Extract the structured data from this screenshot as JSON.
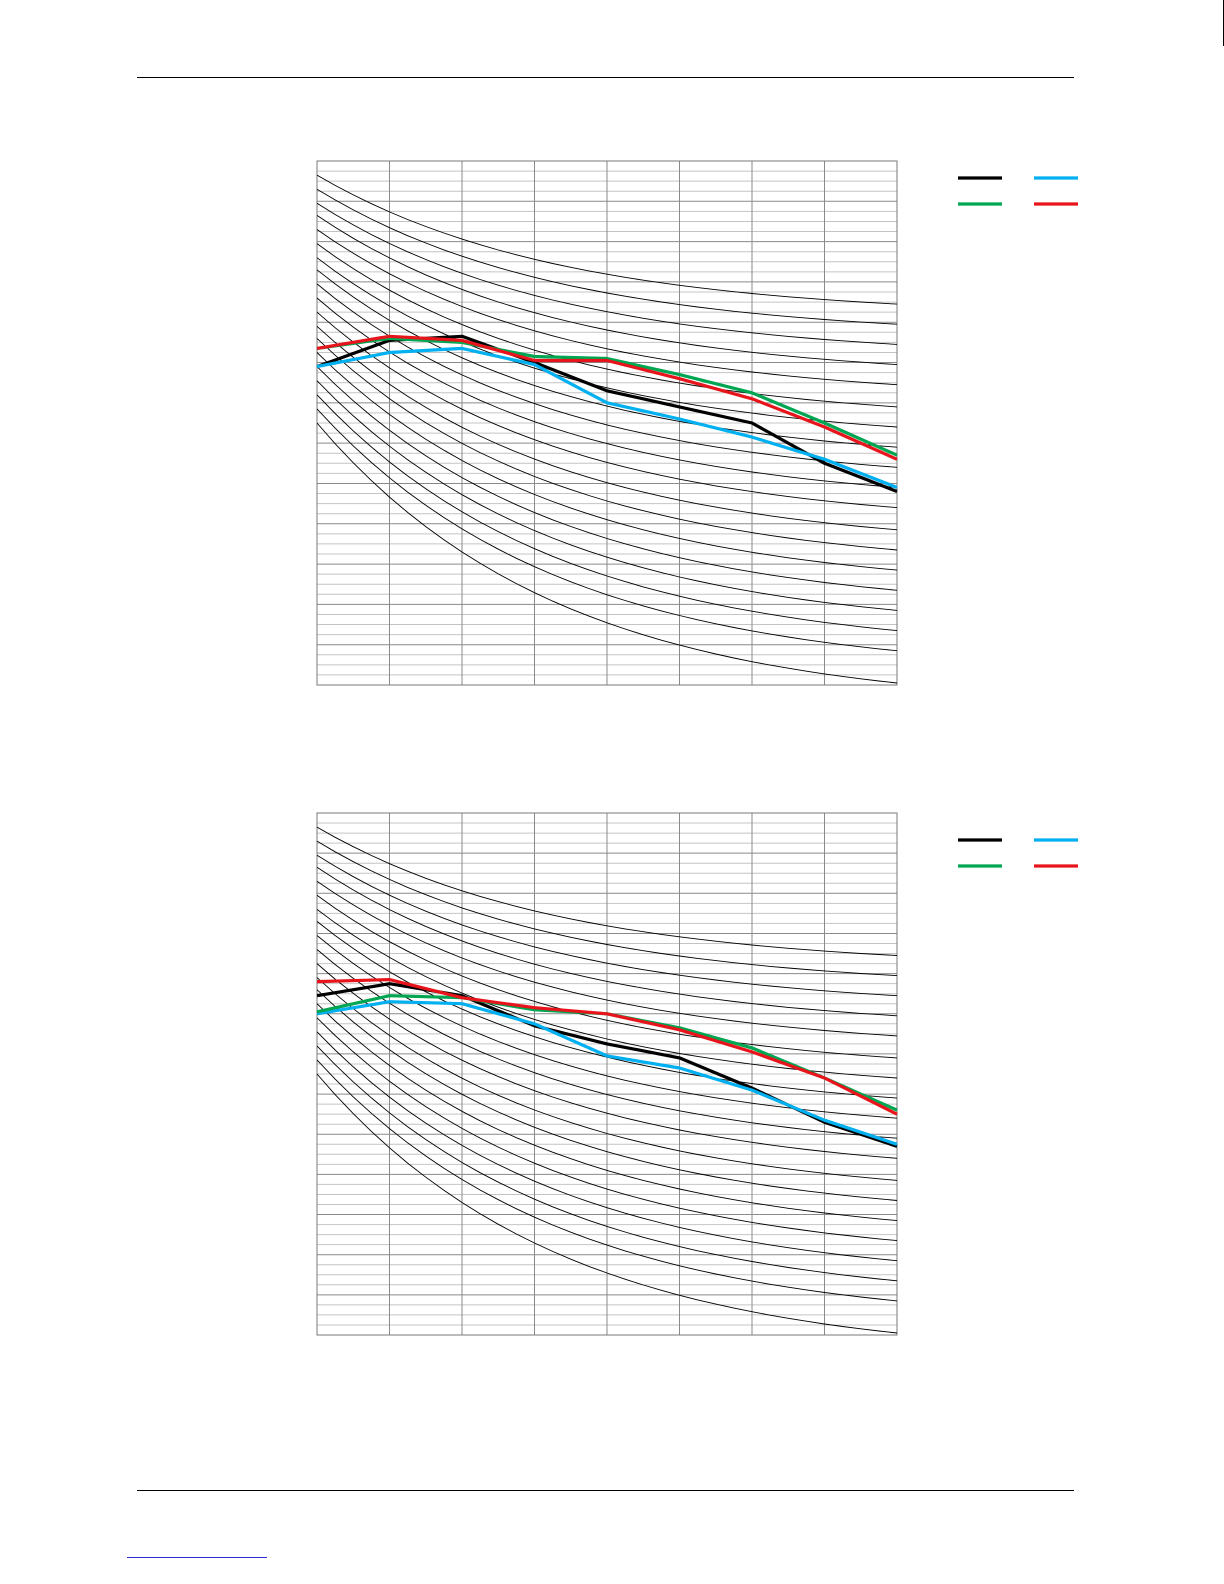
{
  "chart_data": [
    {
      "type": "line",
      "title": "",
      "xlabel": "",
      "ylabel": "",
      "x": [
        0,
        1,
        2,
        3,
        4,
        5,
        6,
        7,
        8
      ],
      "xlim": [
        0,
        8
      ],
      "ylim": [
        0,
        26
      ],
      "grid": true,
      "legend_position": "top-right",
      "reference_curves": {
        "start_values": [
          25.3,
          24.6,
          23.9,
          23.3,
          22.6,
          21.9,
          21.2,
          20.6,
          19.9,
          19.2,
          18.5,
          17.8,
          17.2,
          16.5,
          15.8,
          15.1,
          14.4,
          13.7,
          13.0
        ],
        "end_values": [
          18.9,
          17.9,
          16.9,
          15.9,
          14.9,
          13.8,
          12.8,
          11.8,
          10.8,
          9.8,
          8.8,
          7.7,
          6.7,
          5.7,
          4.7,
          3.7,
          2.7,
          1.7,
          0.1
        ],
        "color": "#000000"
      },
      "series": [
        {
          "color": "#000000",
          "values": [
            15.8,
            17.1,
            17.3,
            16.0,
            14.6,
            13.8,
            13.0,
            11.0,
            9.6
          ]
        },
        {
          "color": "#00b0f0",
          "values": [
            15.8,
            16.5,
            16.7,
            15.9,
            14.0,
            13.2,
            12.3,
            11.2,
            9.8
          ]
        },
        {
          "color": "#00a651",
          "values": [
            16.7,
            17.2,
            17.0,
            16.3,
            16.2,
            15.4,
            14.5,
            13.0,
            11.4
          ]
        },
        {
          "color": "#e8141b",
          "values": [
            16.7,
            17.3,
            17.1,
            16.1,
            16.1,
            15.2,
            14.2,
            12.8,
            11.2
          ]
        }
      ]
    },
    {
      "type": "line",
      "title": "",
      "xlabel": "",
      "ylabel": "",
      "x": [
        0,
        1,
        2,
        3,
        4,
        5,
        6,
        7,
        8
      ],
      "xlim": [
        0,
        8
      ],
      "ylim": [
        0,
        26
      ],
      "grid": true,
      "legend_position": "top-right",
      "reference_curves": {
        "start_values": [
          25.3,
          24.6,
          23.9,
          23.3,
          22.6,
          21.9,
          21.2,
          20.6,
          19.9,
          19.2,
          18.5,
          17.8,
          17.2,
          16.5,
          15.8,
          15.1,
          14.4,
          13.7,
          13.0
        ],
        "end_values": [
          18.9,
          17.9,
          16.9,
          15.9,
          14.9,
          13.8,
          12.8,
          11.8,
          10.8,
          9.8,
          8.8,
          7.7,
          6.7,
          5.7,
          4.7,
          3.7,
          2.7,
          1.7,
          0.1
        ],
        "color": "#000000"
      },
      "series": [
        {
          "color": "#000000",
          "values": [
            16.9,
            17.5,
            16.9,
            15.4,
            14.5,
            13.8,
            12.3,
            10.6,
            9.4
          ]
        },
        {
          "color": "#00b0f0",
          "values": [
            16.0,
            16.6,
            16.5,
            15.5,
            13.9,
            13.3,
            12.2,
            10.7,
            9.5
          ]
        },
        {
          "color": "#00a651",
          "values": [
            16.1,
            16.9,
            16.8,
            16.2,
            16.0,
            15.3,
            14.3,
            12.8,
            11.2
          ]
        },
        {
          "color": "#e8141b",
          "values": [
            17.6,
            17.7,
            16.8,
            16.3,
            16.0,
            15.2,
            14.1,
            12.8,
            11.0
          ]
        }
      ]
    }
  ]
}
